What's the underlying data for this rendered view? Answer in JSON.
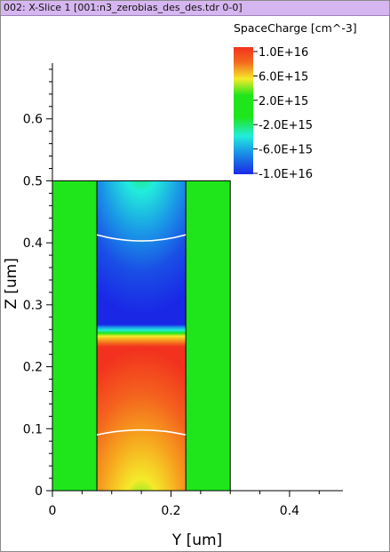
{
  "window": {
    "title": "002: X-Slice 1 [001:n3_zerobias_des_des.tdr 0-0]"
  },
  "colors": {
    "titlebar": "#d6b6f0",
    "green_region": "#1ee61a",
    "red": "#f2321e",
    "blue": "#1a28e6"
  },
  "chart_data": {
    "type": "heatmap",
    "title": "",
    "xlabel": "Y [um]",
    "ylabel": "Z [um]",
    "xlim": [
      0,
      0.49
    ],
    "ylim": [
      0,
      0.69
    ],
    "xticks": [
      0,
      0.2,
      0.4
    ],
    "xticklabels": [
      "0",
      "0.2",
      "0.4"
    ],
    "yticks": [
      0,
      0.1,
      0.2,
      0.3,
      0.4,
      0.5,
      0.6
    ],
    "yticklabels": [
      "0",
      "0.1",
      "0.2",
      "0.3",
      "0.4",
      "0.5",
      "0.6"
    ],
    "colorbar": {
      "label": "SpaceCharge [cm^-3]",
      "range": [
        -1e+16,
        1e+16
      ],
      "tick_labels": [
        "1.0E+16",
        "6.0E+15",
        "2.0E+15",
        "-2.0E+15",
        "-6.0E+15",
        "-1.0E+16"
      ]
    },
    "regions": [
      {
        "name": "left-green",
        "y_range": [
          0,
          0.075
        ],
        "z_range": [
          0,
          0.5
        ],
        "value": 0
      },
      {
        "name": "right-green",
        "y_range": [
          0.225,
          0.3
        ],
        "z_range": [
          0,
          0.5
        ],
        "value": 0
      },
      {
        "name": "n-depleted-top",
        "y_range": [
          0.075,
          0.225
        ],
        "z_range": [
          0.265,
          0.5
        ],
        "value": -1e+16
      },
      {
        "name": "p-depleted-bottom",
        "y_range": [
          0.075,
          0.225
        ],
        "z_range": [
          0,
          0.25
        ],
        "value": 1e+16
      }
    ],
    "contours": [
      {
        "name": "upper-boundary",
        "z_edge": 0.413,
        "z_center": 0.403
      },
      {
        "name": "lower-boundary",
        "z_edge": 0.09,
        "z_center": 0.098
      }
    ]
  }
}
